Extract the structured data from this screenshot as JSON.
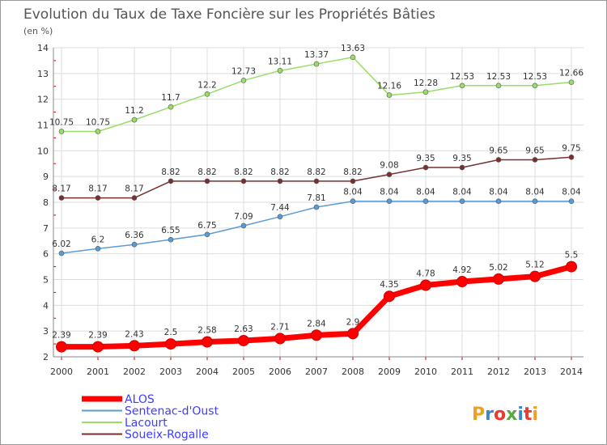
{
  "chart_data": {
    "type": "line",
    "title": "Evolution du Taux de Taxe Foncière sur les Propriétés Bâties",
    "subtitle": "(en %)",
    "xlabel": "",
    "ylabel": "",
    "x": [
      "2000",
      "2001",
      "2002",
      "2003",
      "2004",
      "2005",
      "2006",
      "2007",
      "2008",
      "2009",
      "2010",
      "2011",
      "2012",
      "2013",
      "2014"
    ],
    "ylim": [
      2,
      14
    ],
    "yticks": [
      "2",
      "3",
      "4",
      "5",
      "6",
      "7",
      "8",
      "9",
      "10",
      "11",
      "12",
      "13",
      "14"
    ],
    "grid": true,
    "series": [
      {
        "name": "ALOS",
        "color": "#ff0000",
        "values": [
          2.39,
          2.39,
          2.43,
          2.5,
          2.58,
          2.63,
          2.71,
          2.84,
          2.9,
          4.35,
          4.78,
          4.92,
          5.02,
          5.12,
          5.5
        ],
        "labels": [
          "2.39",
          "2.39",
          "2.43",
          "2.5",
          "2.58",
          "2.63",
          "2.71",
          "2.84",
          "2.9",
          "4.35",
          "4.78",
          "4.92",
          "5.02",
          "5.12",
          "5.5"
        ]
      },
      {
        "name": "Sentenac-d'Oust",
        "color": "#5b9bd5",
        "values": [
          6.02,
          6.2,
          6.36,
          6.55,
          6.75,
          7.09,
          7.44,
          7.81,
          8.04,
          8.04,
          8.04,
          8.04,
          8.04,
          8.04,
          8.04
        ],
        "labels": [
          "6.02",
          "6.2",
          "6.36",
          "6.55",
          "6.75",
          "7.09",
          "7.44",
          "7.81",
          "8.04",
          "8.04",
          "8.04",
          "8.04",
          "8.04",
          "8.04",
          "8.04"
        ]
      },
      {
        "name": "Lacourt",
        "color": "#99dd66",
        "values": [
          10.75,
          10.75,
          11.2,
          11.7,
          12.2,
          12.73,
          13.11,
          13.37,
          13.63,
          12.16,
          12.28,
          12.53,
          12.53,
          12.53,
          12.66
        ],
        "labels": [
          "10.75",
          "10.75",
          "11.2",
          "11.7",
          "12.2",
          "12.73",
          "13.11",
          "13.37",
          "13.63",
          "12.16",
          "12.28",
          "12.53",
          "12.53",
          "12.53",
          "12.66"
        ]
      },
      {
        "name": "Soueix-Rogalle",
        "color": "#7a2f2f",
        "values": [
          8.17,
          8.17,
          8.17,
          8.82,
          8.82,
          8.82,
          8.82,
          8.82,
          8.82,
          9.08,
          9.35,
          9.35,
          9.65,
          9.65,
          9.75
        ],
        "labels": [
          "8.17",
          "8.17",
          "8.17",
          "8.82",
          "8.82",
          "8.82",
          "8.82",
          "8.82",
          "8.82",
          "9.08",
          "9.35",
          "9.35",
          "9.65",
          "9.65",
          "9.75"
        ]
      }
    ],
    "legend_position": "bottom-left"
  },
  "logo": {
    "text": "Proxiti",
    "colors": [
      "#f0a020",
      "#3b87c8",
      "#e83a2e",
      "#5aa840",
      "#3b87c8",
      "#e83a2e",
      "#f0a020"
    ]
  }
}
